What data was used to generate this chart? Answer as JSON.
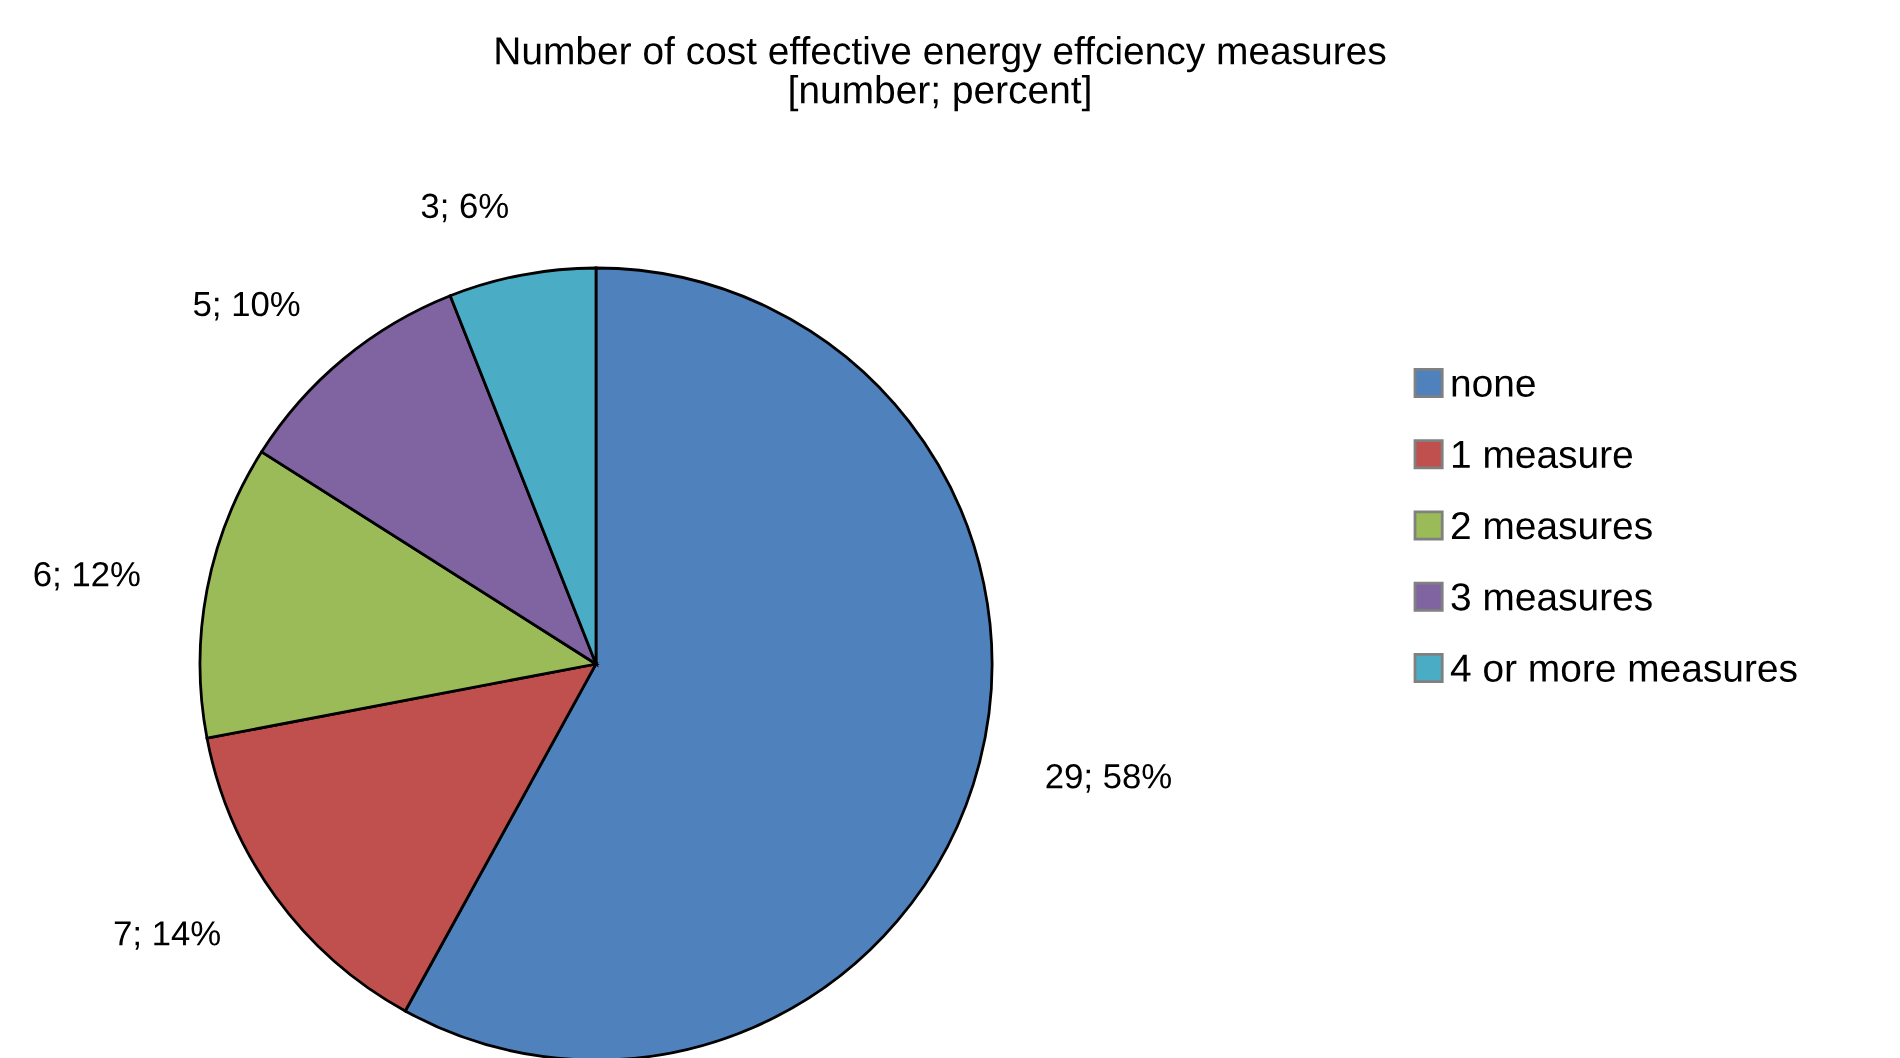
{
  "chart_data": {
    "type": "pie",
    "title": "Number of cost effective energy effciency measures\n[number; percent]",
    "categories": [
      "none",
      "1 measure",
      "2 measures",
      "3 measures",
      "4 or more measures"
    ],
    "values": [
      29,
      7,
      6,
      5,
      3
    ],
    "value_labels": [
      "29; 58%",
      "7; 14%",
      "6; 12%",
      "5; 10%",
      "3; 6%"
    ],
    "colors": [
      "#4f81bd",
      "#c0504d",
      "#9bbb59",
      "#8064a2",
      "#4bacc6"
    ],
    "legend": "right"
  }
}
